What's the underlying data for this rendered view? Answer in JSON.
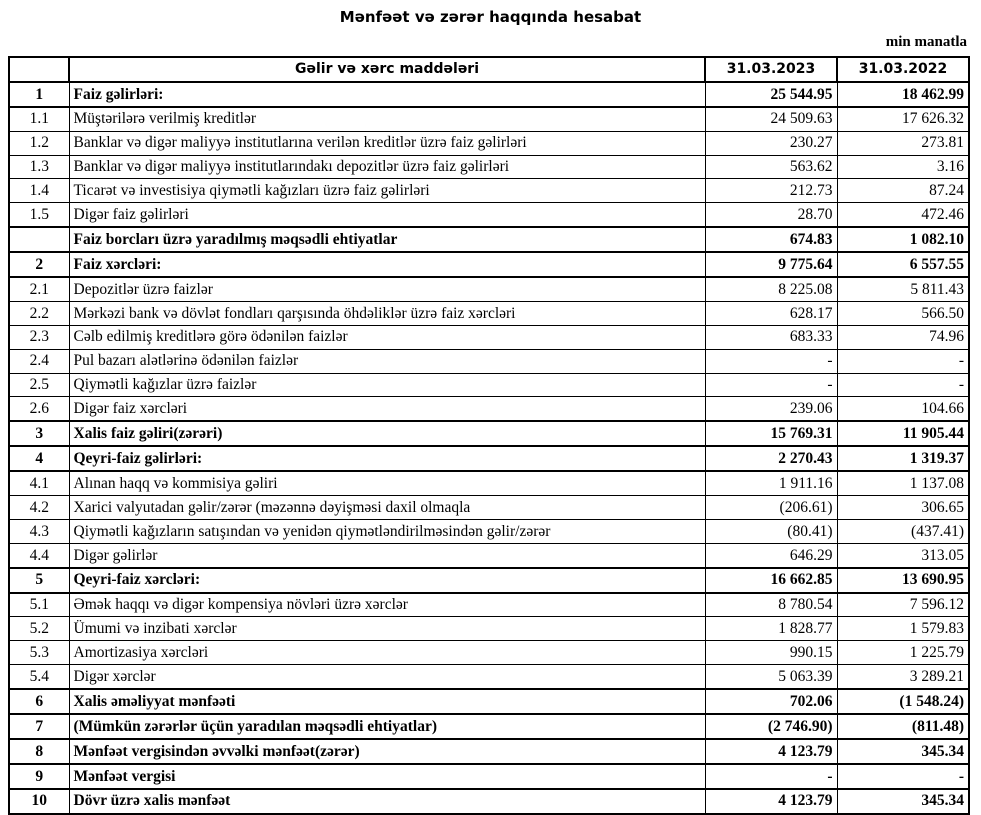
{
  "title": "Mənfəət və zərər haqqında hesabat",
  "unit": "min manatla",
  "header": {
    "item": "Gəlir və xərc maddələri",
    "col1": "31.03.2023",
    "col2": "31.03.2022"
  },
  "rows": [
    {
      "n": "1",
      "label": "Faiz gəlirləri:",
      "a": "25 544.95",
      "b": "18 462.99",
      "bold": true
    },
    {
      "n": "1.1",
      "label": "Müştərilərə verilmiş kreditlər",
      "a": "24 509.63",
      "b": "17 626.32"
    },
    {
      "n": "1.2",
      "label": "Banklar və digər maliyyə institutlarına verilən kreditlər üzrə faiz gəlirləri",
      "a": "230.27",
      "b": "273.81"
    },
    {
      "n": "1.3",
      "label": "Banklar və digər maliyyə institutlarındakı depozitlər üzrə faiz gəlirləri",
      "a": "563.62",
      "b": "3.16"
    },
    {
      "n": "1.4",
      "label": "Ticarət və investisiya qiymətli kağızları üzrə faiz gəlirləri",
      "a": "212.73",
      "b": "87.24"
    },
    {
      "n": "1.5",
      "label": "Digər faiz gəlirləri",
      "a": "28.70",
      "b": "472.46"
    },
    {
      "n": "",
      "label": "Faiz borcları üzrə yaradılmış məqsədli ehtiyatlar",
      "a": "674.83",
      "b": "1 082.10",
      "bold": true
    },
    {
      "n": "2",
      "label": "Faiz xərcləri:",
      "a": "9 775.64",
      "b": "6 557.55",
      "bold": true
    },
    {
      "n": "2.1",
      "label": "Depozitlər üzrə faizlər",
      "a": "8 225.08",
      "b": "5 811.43"
    },
    {
      "n": "2.2",
      "label": "Mərkəzi bank və dövlət fondları qarşısında öhdəliklər üzrə faiz xərcləri",
      "a": "628.17",
      "b": "566.50"
    },
    {
      "n": "2.3",
      "label": "Cəlb edilmiş kreditlərə görə ödənilən faizlər",
      "a": "683.33",
      "b": "74.96"
    },
    {
      "n": "2.4",
      "label": "Pul bazarı alətlərinə ödənilən faizlər",
      "a": "-",
      "b": "-"
    },
    {
      "n": "2.5",
      "label": "Qiymətli kağızlar üzrə faizlər",
      "a": "-",
      "b": "-"
    },
    {
      "n": "2.6",
      "label": "Digər faiz xərcləri",
      "a": "239.06",
      "b": "104.66"
    },
    {
      "n": "3",
      "label": "Xalis faiz gəliri(zərəri)",
      "a": "15 769.31",
      "b": "11 905.44",
      "bold": true
    },
    {
      "n": "4",
      "label": "Qeyri-faiz gəlirləri:",
      "a": "2 270.43",
      "b": "1 319.37",
      "bold": true
    },
    {
      "n": "4.1",
      "label": "Alınan haqq və kommisiya gəliri",
      "a": "1 911.16",
      "b": "1 137.08"
    },
    {
      "n": "4.2",
      "label": "Xarici valyutadan gəlir/zərər (məzənnə dəyişməsi daxil olmaqla",
      "a": "(206.61)",
      "b": "306.65"
    },
    {
      "n": "4.3",
      "label": "Qiymətli kağızların satışından və yenidən qiymətləndirilməsindən gəlir/zərər",
      "a": "(80.41)",
      "b": "(437.41)"
    },
    {
      "n": "4.4",
      "label": "Digər gəlirlər",
      "a": "646.29",
      "b": "313.05"
    },
    {
      "n": "5",
      "label": "Qeyri-faiz xərcləri:",
      "a": "16 662.85",
      "b": "13 690.95",
      "bold": true
    },
    {
      "n": "5.1",
      "label": "Əmək haqqı və digər kompensiya növləri üzrə xərclər",
      "a": "8 780.54",
      "b": "7 596.12"
    },
    {
      "n": "5.2",
      "label": "Ümumi və inzibati xərclər",
      "a": "1 828.77",
      "b": "1 579.83"
    },
    {
      "n": "5.3",
      "label": "Amortizasiya xərcləri",
      "a": "990.15",
      "b": "1 225.79"
    },
    {
      "n": "5.4",
      "label": "Digər xərclər",
      "a": "5 063.39",
      "b": "3 289.21"
    },
    {
      "n": "6",
      "label": "Xalis əməliyyat mənfəəti",
      "a": "702.06",
      "b": "(1 548.24)",
      "bold": true
    },
    {
      "n": "7",
      "label": "(Mümkün zərərlər üçün yaradılan məqsədli ehtiyatlar)",
      "a": "(2 746.90)",
      "b": "(811.48)",
      "bold": true
    },
    {
      "n": "8",
      "label": "Mənfəət vergisindən əvvəlki mənfəət(zərər)",
      "a": "4 123.79",
      "b": "345.34",
      "bold": true
    },
    {
      "n": "9",
      "label": "Mənfəət vergisi",
      "a": "-",
      "b": "-",
      "bold": true
    },
    {
      "n": "10",
      "label": "Dövr üzrə xalis mənfəət",
      "a": "4 123.79",
      "b": "345.34",
      "bold": true
    }
  ]
}
